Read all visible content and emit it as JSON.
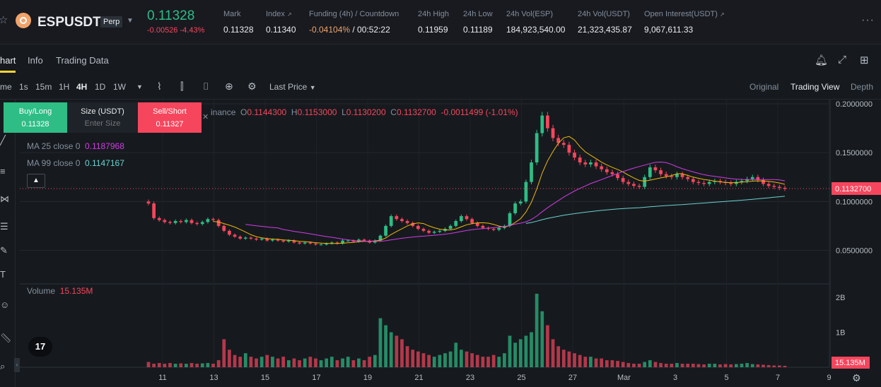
{
  "header": {
    "symbol": "ESPUSDT",
    "contract": "Perp",
    "last_price": "0.11328",
    "change": "-0.00526",
    "change_pct": "-4.43%",
    "stats": [
      {
        "label": "Mark",
        "value": "0.11328"
      },
      {
        "label": "Index",
        "value": "0.11340",
        "ext": true
      },
      {
        "label": "Funding (4h) / Countdown",
        "value_a": "-0.04104%",
        "value_b": "/ 00:52:22"
      },
      {
        "label": "24h High",
        "value": "0.11959"
      },
      {
        "label": "24h Low",
        "value": "0.11189"
      },
      {
        "label": "24h Vol(ESP)",
        "value": "184,923,540.00"
      },
      {
        "label": "24h Vol(USDT)",
        "value": "21,323,435.87"
      },
      {
        "label": "Open Interest(USDT)",
        "value": "9,067,611.33",
        "ext": true
      }
    ]
  },
  "tabs": [
    "hart",
    "Info",
    "Trading Data"
  ],
  "toolbar": {
    "time_label": "me",
    "intervals": [
      "1s",
      "15m",
      "1H",
      "4H",
      "1D",
      "1W"
    ],
    "active_interval": "4H",
    "price_type": "Last Price",
    "views": [
      "Original",
      "Trading View",
      "Depth"
    ],
    "active_view": "Trading View"
  },
  "order": {
    "buy_label": "Buy/Long",
    "buy_price": "0.11328",
    "size_label": "Size (USDT)",
    "size_placeholder": "Enter Size",
    "sell_label": "Sell/Short",
    "sell_price": "0.11327"
  },
  "legend": {
    "source": "inance",
    "open_label": "O",
    "open": "0.1144300",
    "high_label": "H",
    "high": "0.1153000",
    "low_label": "L",
    "low": "0.1130200",
    "close_label": "C",
    "close": "0.1132700",
    "change": "-0.0011499 (-1.01%)"
  },
  "indicators": {
    "ma25_label": "MA 25 close 0",
    "ma25_value": "0.1187968",
    "ma99_label": "MA 99 close 0",
    "ma99_value": "0.1147167",
    "volume_label": "Volume",
    "volume_value": "15.135M"
  },
  "colors": {
    "up": "#2ebd85",
    "down": "#f6465d",
    "ma7": "#f0b90b",
    "ma25": "#d33be7",
    "ma99": "#6ad1d1"
  },
  "chart_data": {
    "type": "candlestick",
    "x_tick_labels": [
      "11",
      "13",
      "15",
      "17",
      "19",
      "21",
      "23",
      "25",
      "27",
      "Mar",
      "3",
      "5",
      "7",
      "9"
    ],
    "y_ticks": [
      0.05,
      0.1,
      0.15,
      0.2
    ],
    "y_tick_labels": [
      "0.0500000",
      "0.1000000",
      "0.1500000",
      "0.2000000"
    ],
    "ylim": [
      0.02,
      0.2
    ],
    "last_price_label": "0.1132700",
    "last_price_value": 0.11327,
    "volume_ticks": [
      1000000000,
      2000000000
    ],
    "volume_tick_labels": [
      "1B",
      "2B"
    ],
    "volume_last_label": "15.135M",
    "volume_last_value": 15135000,
    "close_series": [
      0.098,
      0.083,
      0.081,
      0.079,
      0.078,
      0.08,
      0.079,
      0.081,
      0.078,
      0.077,
      0.079,
      0.082,
      0.081,
      0.075,
      0.07,
      0.066,
      0.064,
      0.062,
      0.063,
      0.062,
      0.061,
      0.062,
      0.06,
      0.061,
      0.06,
      0.059,
      0.06,
      0.058,
      0.057,
      0.058,
      0.057,
      0.056,
      0.056,
      0.057,
      0.058,
      0.057,
      0.06,
      0.06,
      0.059,
      0.061,
      0.06,
      0.058,
      0.06,
      0.065,
      0.075,
      0.085,
      0.082,
      0.08,
      0.078,
      0.075,
      0.072,
      0.07,
      0.068,
      0.069,
      0.07,
      0.072,
      0.075,
      0.08,
      0.085,
      0.082,
      0.078,
      0.075,
      0.073,
      0.072,
      0.071,
      0.073,
      0.075,
      0.088,
      0.098,
      0.1,
      0.12,
      0.14,
      0.17,
      0.188,
      0.175,
      0.165,
      0.16,
      0.158,
      0.15,
      0.145,
      0.14,
      0.138,
      0.14,
      0.136,
      0.133,
      0.13,
      0.128,
      0.124,
      0.12,
      0.118,
      0.116,
      0.115,
      0.125,
      0.135,
      0.132,
      0.128,
      0.126,
      0.125,
      0.128,
      0.125,
      0.123,
      0.12,
      0.119,
      0.118,
      0.12,
      0.121,
      0.12,
      0.119,
      0.118,
      0.12,
      0.121,
      0.123,
      0.125,
      0.122,
      0.118,
      0.116,
      0.115,
      0.114,
      0.113
    ],
    "volume_series": [
      0.15,
      0.1,
      0.12,
      0.1,
      0.12,
      0.1,
      0.11,
      0.1,
      0.12,
      0.1,
      0.11,
      0.12,
      0.1,
      0.2,
      0.8,
      0.5,
      0.35,
      0.3,
      0.4,
      0.3,
      0.25,
      0.3,
      0.35,
      0.3,
      0.25,
      0.3,
      0.2,
      0.25,
      0.2,
      0.25,
      0.3,
      0.25,
      0.2,
      0.25,
      0.3,
      0.2,
      0.25,
      0.3,
      0.2,
      0.25,
      0.2,
      0.3,
      0.35,
      1.4,
      1.2,
      1.0,
      0.9,
      0.8,
      0.6,
      0.5,
      0.45,
      0.4,
      0.35,
      0.3,
      0.35,
      0.4,
      0.45,
      0.7,
      0.5,
      0.45,
      0.4,
      0.35,
      0.3,
      0.3,
      0.35,
      0.3,
      0.4,
      0.9,
      0.7,
      0.8,
      0.9,
      1.0,
      2.1,
      1.6,
      1.2,
      0.8,
      0.6,
      0.5,
      0.45,
      0.4,
      0.35,
      0.3,
      0.3,
      0.25,
      0.25,
      0.2,
      0.2,
      0.18,
      0.15,
      0.12,
      0.1,
      0.1,
      0.15,
      0.2,
      0.15,
      0.12,
      0.1,
      0.1,
      0.12,
      0.1,
      0.1,
      0.1,
      0.09,
      0.08,
      0.1,
      0.1,
      0.08,
      0.09,
      0.08,
      0.09,
      0.1,
      0.12,
      0.09,
      0.08,
      0.07,
      0.06,
      0.05,
      0.05,
      0.04
    ],
    "ma99_series": [
      null,
      null,
      null,
      null,
      null,
      null,
      null,
      null,
      null,
      null,
      null,
      null,
      null,
      null,
      null,
      null,
      null,
      null,
      null,
      null,
      null,
      null,
      null,
      null,
      null,
      null,
      null,
      null,
      null,
      null,
      null,
      null,
      null,
      null,
      null,
      null,
      null,
      null,
      null,
      null,
      null,
      null,
      null,
      null,
      null,
      null,
      null,
      null,
      null,
      null,
      null,
      null,
      null,
      null,
      null,
      null,
      null,
      null,
      null,
      null,
      null,
      null,
      null,
      null,
      null,
      null,
      null,
      null,
      null,
      null,
      null,
      null,
      null,
      null,
      null,
      null,
      null,
      null,
      null,
      null,
      null,
      null,
      null,
      null,
      null,
      null,
      null,
      null,
      null,
      null,
      null,
      null,
      null,
      null,
      null,
      null,
      null,
      null,
      null,
      null,
      null,
      null,
      null,
      null,
      null,
      null,
      null,
      null,
      null,
      null,
      null,
      null,
      null,
      null,
      null,
      null,
      null,
      null,
      null
    ]
  }
}
